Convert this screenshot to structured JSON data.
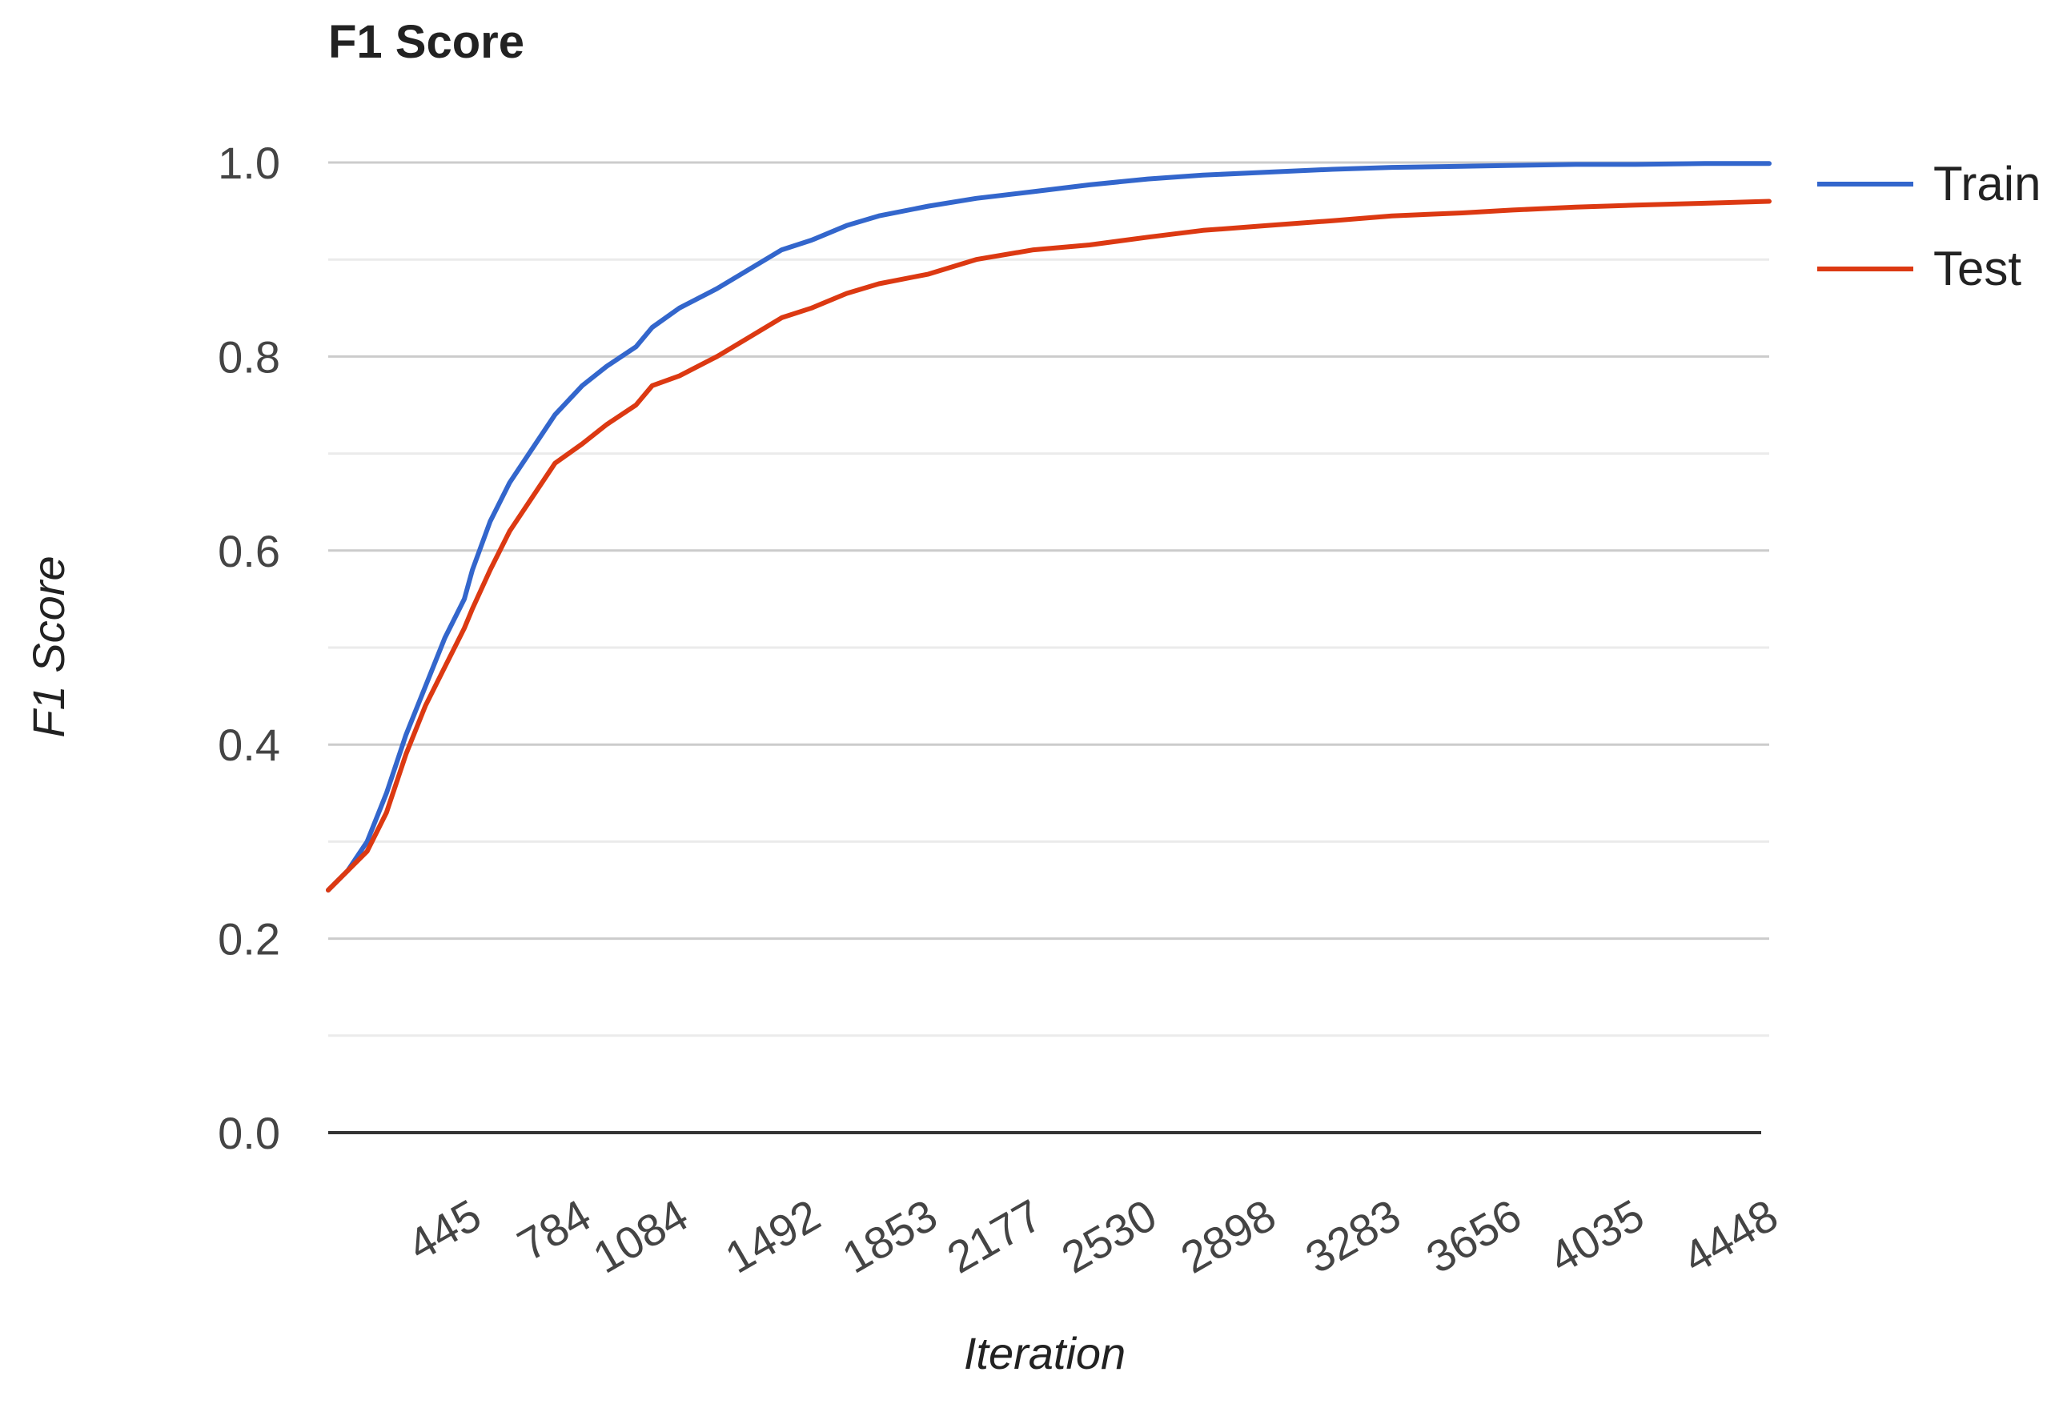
{
  "chart_data": {
    "type": "line",
    "title": "F1 Score",
    "xlabel": "Iteration",
    "ylabel": "F1 Score",
    "ylim": [
      0,
      1
    ],
    "y_ticks": [
      "0.0",
      "0.2",
      "0.4",
      "0.6",
      "0.8",
      "1.0"
    ],
    "x_tick_labels": [
      "445",
      "784",
      "1084",
      "1492",
      "1853",
      "2177",
      "2530",
      "2898",
      "3283",
      "3656",
      "4035",
      "4448"
    ],
    "xlim": [
      0,
      4448
    ],
    "grid": true,
    "legend_position": "right",
    "series": [
      {
        "name": "Train",
        "color": "#3366cc",
        "points": [
          [
            0,
            0.25
          ],
          [
            60,
            0.27
          ],
          [
            120,
            0.3
          ],
          [
            180,
            0.35
          ],
          [
            240,
            0.41
          ],
          [
            300,
            0.46
          ],
          [
            360,
            0.51
          ],
          [
            420,
            0.55
          ],
          [
            445,
            0.58
          ],
          [
            500,
            0.63
          ],
          [
            560,
            0.67
          ],
          [
            620,
            0.7
          ],
          [
            700,
            0.74
          ],
          [
            784,
            0.77
          ],
          [
            860,
            0.79
          ],
          [
            950,
            0.81
          ],
          [
            1000,
            0.83
          ],
          [
            1084,
            0.85
          ],
          [
            1200,
            0.87
          ],
          [
            1300,
            0.89
          ],
          [
            1400,
            0.91
          ],
          [
            1492,
            0.92
          ],
          [
            1600,
            0.935
          ],
          [
            1700,
            0.945
          ],
          [
            1853,
            0.955
          ],
          [
            2000,
            0.963
          ],
          [
            2177,
            0.97
          ],
          [
            2350,
            0.977
          ],
          [
            2530,
            0.983
          ],
          [
            2700,
            0.987
          ],
          [
            2898,
            0.99
          ],
          [
            3100,
            0.993
          ],
          [
            3283,
            0.995
          ],
          [
            3500,
            0.996
          ],
          [
            3656,
            0.997
          ],
          [
            3850,
            0.998
          ],
          [
            4035,
            0.998
          ],
          [
            4250,
            0.999
          ],
          [
            4448,
            0.999
          ]
        ]
      },
      {
        "name": "Test",
        "color": "#dc3912",
        "points": [
          [
            0,
            0.25
          ],
          [
            60,
            0.27
          ],
          [
            120,
            0.29
          ],
          [
            180,
            0.33
          ],
          [
            240,
            0.39
          ],
          [
            300,
            0.44
          ],
          [
            360,
            0.48
          ],
          [
            420,
            0.52
          ],
          [
            445,
            0.54
          ],
          [
            500,
            0.58
          ],
          [
            560,
            0.62
          ],
          [
            620,
            0.65
          ],
          [
            700,
            0.69
          ],
          [
            784,
            0.71
          ],
          [
            860,
            0.73
          ],
          [
            950,
            0.75
          ],
          [
            1000,
            0.77
          ],
          [
            1084,
            0.78
          ],
          [
            1200,
            0.8
          ],
          [
            1300,
            0.82
          ],
          [
            1400,
            0.84
          ],
          [
            1492,
            0.85
          ],
          [
            1600,
            0.865
          ],
          [
            1700,
            0.875
          ],
          [
            1853,
            0.885
          ],
          [
            2000,
            0.9
          ],
          [
            2177,
            0.91
          ],
          [
            2350,
            0.915
          ],
          [
            2530,
            0.923
          ],
          [
            2700,
            0.93
          ],
          [
            2898,
            0.935
          ],
          [
            3100,
            0.94
          ],
          [
            3283,
            0.945
          ],
          [
            3500,
            0.948
          ],
          [
            3656,
            0.951
          ],
          [
            3850,
            0.954
          ],
          [
            4035,
            0.956
          ],
          [
            4250,
            0.958
          ],
          [
            4448,
            0.96
          ]
        ]
      }
    ]
  }
}
